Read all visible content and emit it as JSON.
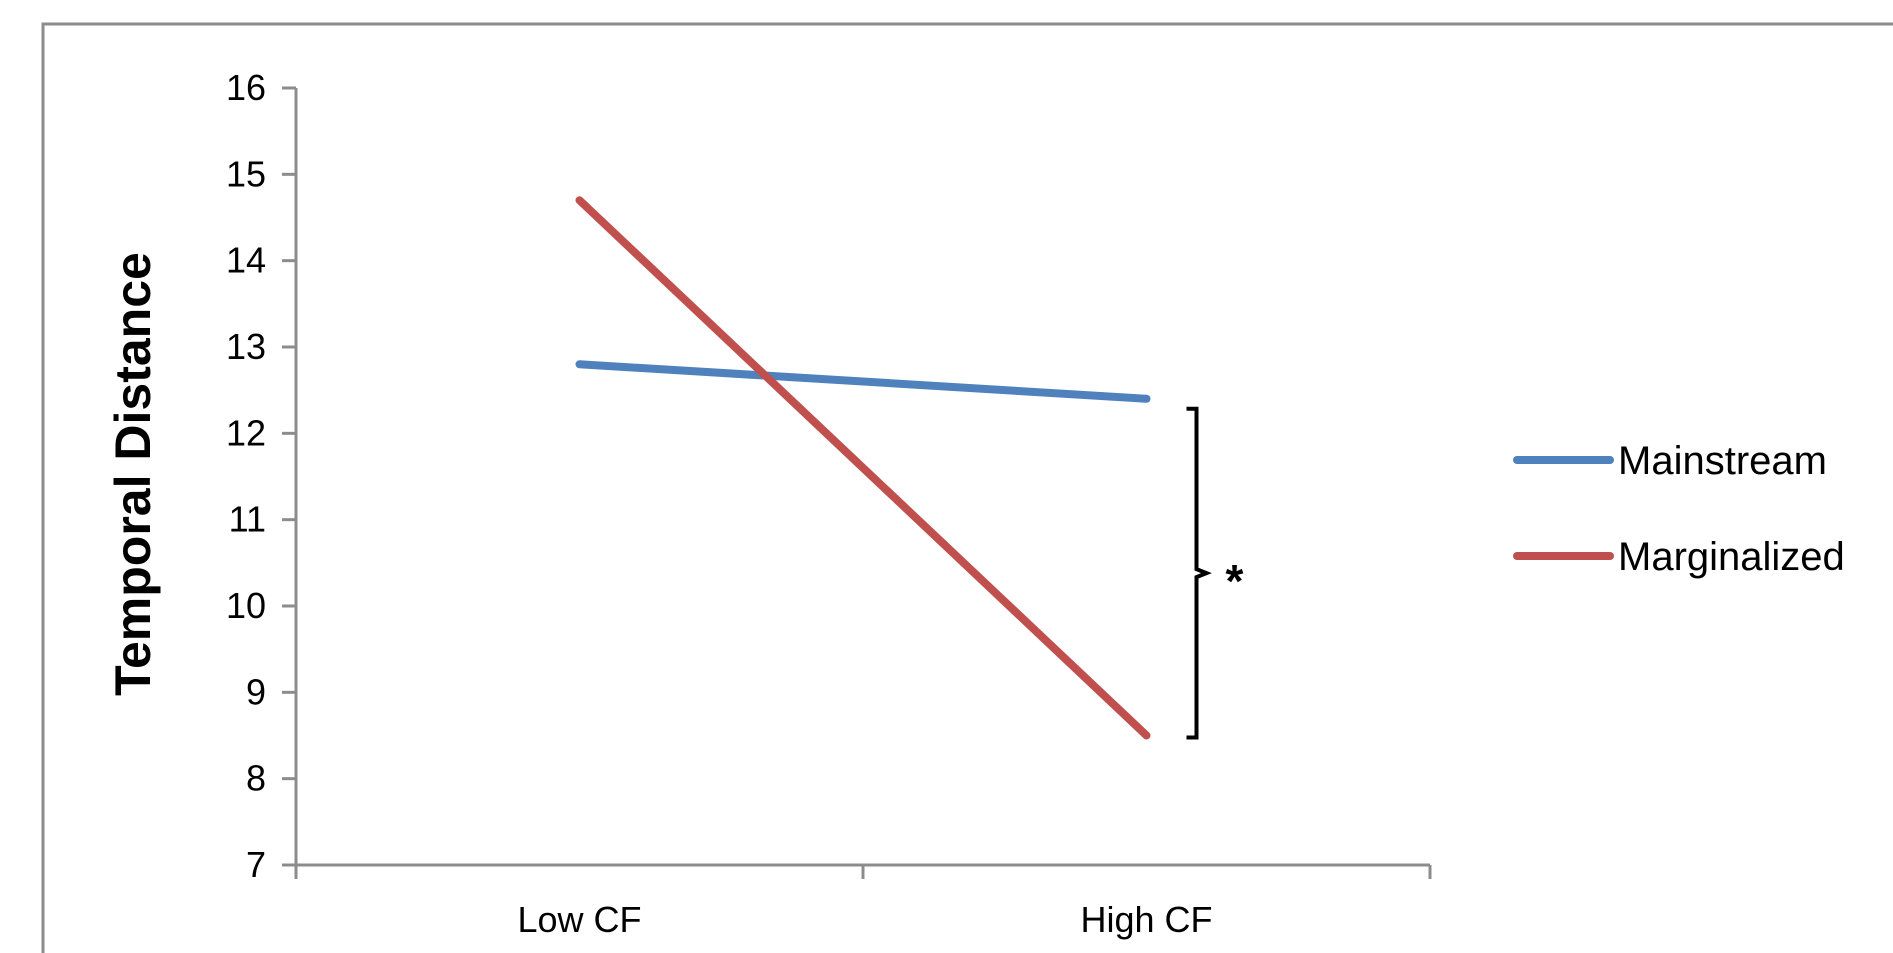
{
  "chart_data": {
    "type": "line",
    "categories": [
      "Low CF",
      "High CF"
    ],
    "series": [
      {
        "name": "Mainstream",
        "values": [
          12.8,
          12.4
        ],
        "color": "#4F81BD"
      },
      {
        "name": "Marginalized",
        "values": [
          14.7,
          8.5
        ],
        "color": "#C0504D"
      }
    ],
    "title": "",
    "xlabel": "",
    "ylabel": "Temporal Distance",
    "ylim": [
      7,
      16
    ],
    "yticks": [
      7,
      8,
      9,
      10,
      11,
      12,
      13,
      14,
      15,
      16
    ],
    "grid": false,
    "legend_position": "right",
    "annotation": {
      "text": "*",
      "category": "High CF",
      "spans_series": [
        "Mainstream",
        "Marginalized"
      ]
    }
  }
}
